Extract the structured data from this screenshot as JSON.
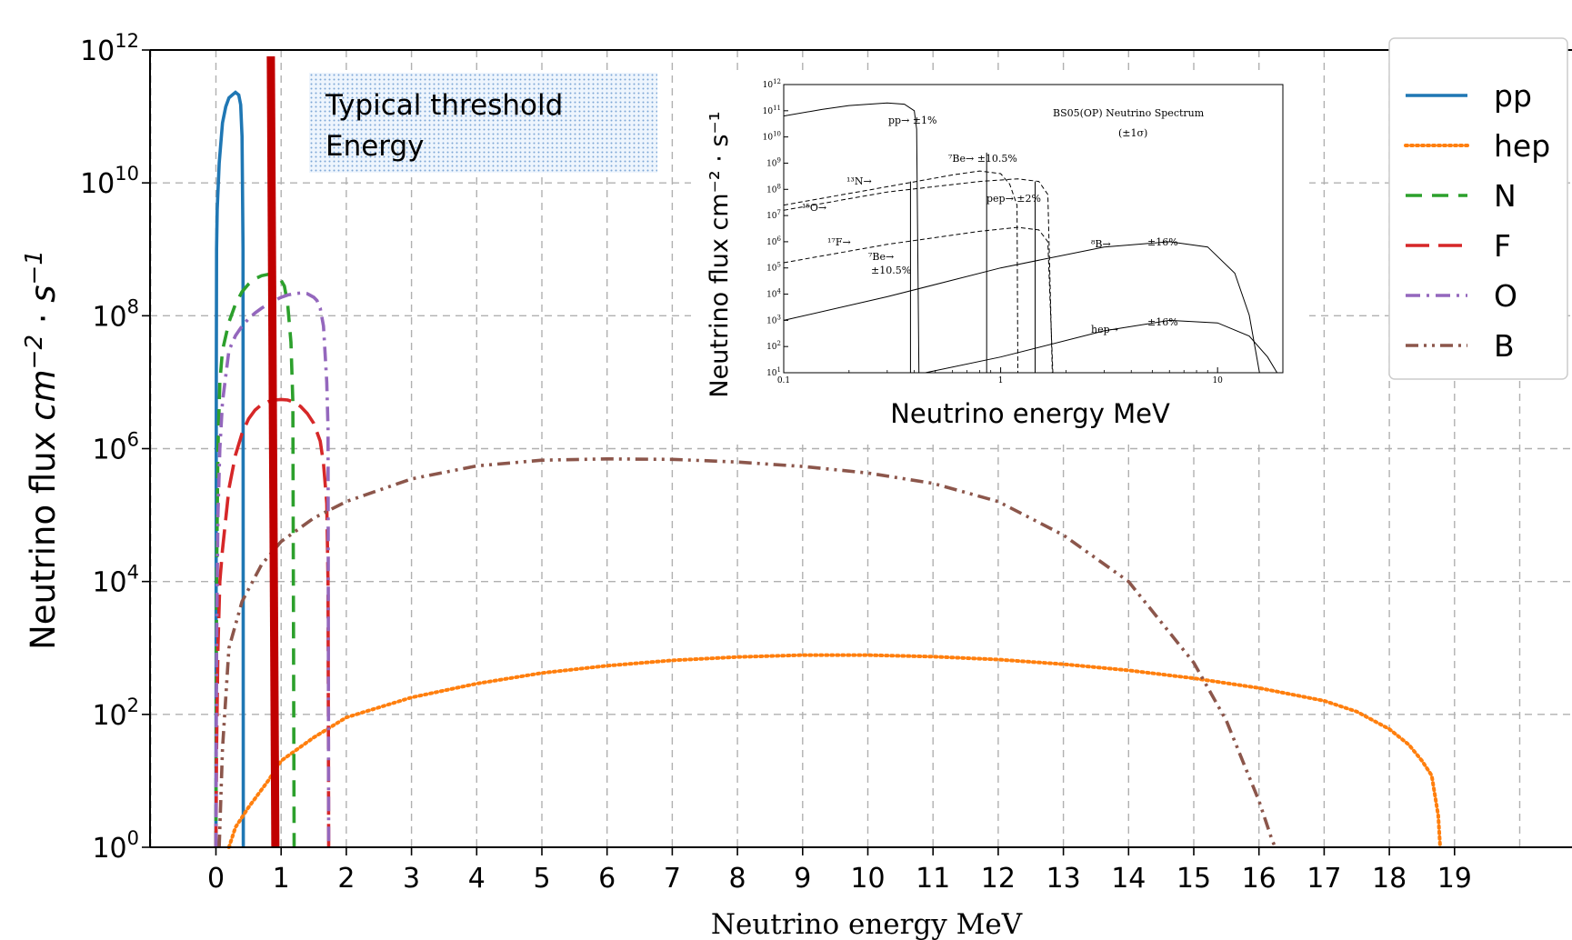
{
  "chart_data": {
    "type": "line",
    "title": "",
    "xlabel": "Neutrino energy MeV",
    "ylabel": "Neutrino flux cm⁻² · s⁻¹",
    "xlim": [
      -1,
      20.5
    ],
    "ylim": [
      1,
      1000000000000.0
    ],
    "yscale": "log",
    "grid": true,
    "legend_position": "top-right",
    "x_ticks": [
      "0",
      "1",
      "2",
      "3",
      "4",
      "5",
      "6",
      "7",
      "8",
      "9",
      "10",
      "11",
      "12",
      "13",
      "14",
      "15",
      "16",
      "17",
      "18",
      "19"
    ],
    "y_ticks": [
      {
        "base": "10",
        "exp": "0"
      },
      {
        "base": "10",
        "exp": "2"
      },
      {
        "base": "10",
        "exp": "4"
      },
      {
        "base": "10",
        "exp": "6"
      },
      {
        "base": "10",
        "exp": "8"
      },
      {
        "base": "10",
        "exp": "10"
      },
      {
        "base": "10",
        "exp": "12"
      }
    ],
    "series": [
      {
        "name": "pp",
        "color": "#1f77b4",
        "style": "solid",
        "points": [
          [
            0.0,
            1
          ],
          [
            0.005,
            10000000.0
          ],
          [
            0.01,
            1000000000.0
          ],
          [
            0.02,
            4000000000.0
          ],
          [
            0.05,
            20000000000.0
          ],
          [
            0.1,
            80000000000.0
          ],
          [
            0.15,
            140000000000.0
          ],
          [
            0.2,
            190000000000.0
          ],
          [
            0.25,
            210000000000.0
          ],
          [
            0.3,
            230000000000.0
          ],
          [
            0.35,
            210000000000.0
          ],
          [
            0.38,
            150000000000.0
          ],
          [
            0.4,
            50000000000.0
          ],
          [
            0.415,
            1000000000.0
          ],
          [
            0.42,
            1
          ]
        ]
      },
      {
        "name": "hep",
        "color": "#ff7f0e",
        "style": "dotted",
        "points": [
          [
            0.2,
            1
          ],
          [
            0.3,
            2
          ],
          [
            0.5,
            4
          ],
          [
            0.8,
            10
          ],
          [
            1.0,
            20
          ],
          [
            1.5,
            45
          ],
          [
            2,
            90
          ],
          [
            3,
            180
          ],
          [
            4,
            290
          ],
          [
            5,
            420
          ],
          [
            6,
            540
          ],
          [
            7,
            650
          ],
          [
            8,
            730
          ],
          [
            9,
            780
          ],
          [
            10,
            780
          ],
          [
            11,
            740
          ],
          [
            12,
            670
          ],
          [
            13,
            570
          ],
          [
            14,
            460
          ],
          [
            15,
            350
          ],
          [
            16,
            250
          ],
          [
            17,
            160
          ],
          [
            17.5,
            110
          ],
          [
            18,
            60
          ],
          [
            18.3,
            35
          ],
          [
            18.5,
            20
          ],
          [
            18.65,
            12
          ],
          [
            18.7,
            6
          ],
          [
            18.75,
            3
          ],
          [
            18.78,
            1
          ]
        ]
      },
      {
        "name": "N",
        "color": "#2ca02c",
        "style": "dashed",
        "points": [
          [
            0.0,
            1
          ],
          [
            0.01,
            10000.0
          ],
          [
            0.03,
            1000000.0
          ],
          [
            0.06,
            10000000.0
          ],
          [
            0.1,
            30000000.0
          ],
          [
            0.2,
            80000000.0
          ],
          [
            0.3,
            150000000.0
          ],
          [
            0.4,
            230000000.0
          ],
          [
            0.5,
            300000000.0
          ],
          [
            0.6,
            360000000.0
          ],
          [
            0.7,
            400000000.0
          ],
          [
            0.8,
            420000000.0
          ],
          [
            0.9,
            400000000.0
          ],
          [
            1.0,
            340000000.0
          ],
          [
            1.05,
            280000000.0
          ],
          [
            1.1,
            150000000.0
          ],
          [
            1.15,
            40000000.0
          ],
          [
            1.18,
            5000000.0
          ],
          [
            1.2,
            1
          ]
        ]
      },
      {
        "name": "F",
        "color": "#d62728",
        "style": "longdash",
        "points": [
          [
            0.0,
            1
          ],
          [
            0.01,
            30
          ],
          [
            0.03,
            1000.0
          ],
          [
            0.06,
            10000.0
          ],
          [
            0.1,
            30000.0
          ],
          [
            0.2,
            250000.0
          ],
          [
            0.3,
            800000.0
          ],
          [
            0.4,
            1700000.0
          ],
          [
            0.5,
            2800000.0
          ],
          [
            0.6,
            3800000.0
          ],
          [
            0.7,
            4600000.0
          ],
          [
            0.8,
            5100000.0
          ],
          [
            0.9,
            5400000.0
          ],
          [
            1.0,
            5500000.0
          ],
          [
            1.1,
            5400000.0
          ],
          [
            1.2,
            5000000.0
          ],
          [
            1.3,
            4300000.0
          ],
          [
            1.4,
            3400000.0
          ],
          [
            1.5,
            2400000.0
          ],
          [
            1.6,
            1300000.0
          ],
          [
            1.65,
            600000.0
          ],
          [
            1.7,
            150000.0
          ],
          [
            1.72,
            10000.0
          ],
          [
            1.73,
            1
          ]
        ]
      },
      {
        "name": "O",
        "color": "#9467bd",
        "style": "dashdot",
        "points": [
          [
            0.0,
            1
          ],
          [
            0.01,
            1000.0
          ],
          [
            0.03,
            100000.0
          ],
          [
            0.06,
            1000000.0
          ],
          [
            0.1,
            5000000.0
          ],
          [
            0.2,
            30000000.0
          ],
          [
            0.3,
            50000000.0
          ],
          [
            0.4,
            70000000.0
          ],
          [
            0.5,
            90000000.0
          ],
          [
            0.6,
            110000000.0
          ],
          [
            0.7,
            130000000.0
          ],
          [
            0.8,
            150000000.0
          ],
          [
            0.9,
            170000000.0
          ],
          [
            1.0,
            190000000.0
          ],
          [
            1.1,
            205000000.0
          ],
          [
            1.2,
            215000000.0
          ],
          [
            1.3,
            220000000.0
          ],
          [
            1.4,
            215000000.0
          ],
          [
            1.5,
            190000000.0
          ],
          [
            1.55,
            170000000.0
          ],
          [
            1.6,
            130000000.0
          ],
          [
            1.65,
            70000000.0
          ],
          [
            1.7,
            10000000.0
          ],
          [
            1.72,
            2000000.0
          ],
          [
            1.73,
            1
          ]
        ]
      },
      {
        "name": "B",
        "color": "#8c564b",
        "style": "dashdotdot",
        "points": [
          [
            0.05,
            1
          ],
          [
            0.1,
            30
          ],
          [
            0.2,
            1000.0
          ],
          [
            0.4,
            5000.0
          ],
          [
            0.7,
            18000.0
          ],
          [
            1,
            40000.0
          ],
          [
            1.5,
            90000.0
          ],
          [
            2,
            160000.0
          ],
          [
            3,
            350000.0
          ],
          [
            4,
            550000.0
          ],
          [
            5,
            670000.0
          ],
          [
            6,
            700000.0
          ],
          [
            7,
            690000.0
          ],
          [
            8,
            630000.0
          ],
          [
            9,
            540000.0
          ],
          [
            10,
            430000.0
          ],
          [
            11,
            300000.0
          ],
          [
            12,
            160000.0
          ],
          [
            13,
            50000.0
          ],
          [
            14,
            10000.0
          ],
          [
            15,
            600
          ],
          [
            15.5,
            80
          ],
          [
            15.8,
            15
          ],
          [
            16.0,
            5
          ],
          [
            16.2,
            1.3
          ],
          [
            16.25,
            1
          ]
        ]
      }
    ],
    "threshold": {
      "label_line1": "Typical threshold",
      "label_line2": "Energy",
      "x": 0.87,
      "color": "#c00000"
    },
    "inset": {
      "title": "BS05(OP) Neutrino Spectrum",
      "subtitle": "(±1σ)",
      "xlabel": "Neutrino energy MeV",
      "ylabel": "Neutrino flux cm⁻² · s⁻¹",
      "x_ticks": [
        "0.1",
        "1",
        "10"
      ],
      "y_exponents": [
        "12",
        "11",
        "10",
        "9",
        "8",
        "7",
        "6",
        "5",
        "4",
        "3",
        "2",
        "1"
      ],
      "labels": [
        "pp→ ±1%",
        "⁷Be→ ±10.5%",
        "¹³N→",
        "¹⁵O→",
        "pep→ ±2%",
        "¹⁷F→",
        "⁷Be→",
        "±10.5%",
        "⁸B→",
        "±16%",
        "hep→",
        "±16%"
      ]
    }
  }
}
